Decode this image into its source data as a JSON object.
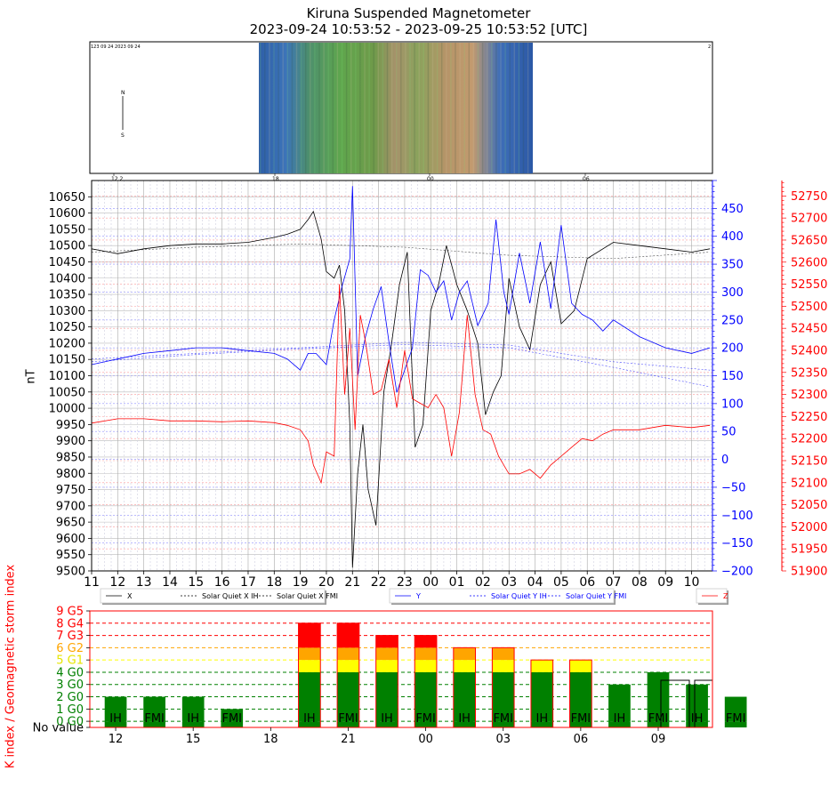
{
  "header": {
    "title": "Kiruna Suspended Magnetometer",
    "subtitle": "2023-09-24 10:53:52 - 2023-09-25 10:53:52 [UTC]"
  },
  "keogram": {
    "top_label": "123 09 24 2023 09 24",
    "right_label": "2",
    "north_label": "N",
    "south_label": "S",
    "time_ticks": [
      "12",
      "18",
      "00",
      "06"
    ],
    "time_tick_text": [
      "12 2",
      "18",
      "00",
      "06"
    ]
  },
  "magnetometer": {
    "ylabel": "nT",
    "hour_labels": [
      "11",
      "12",
      "13",
      "14",
      "15",
      "16",
      "17",
      "18",
      "19",
      "20",
      "21",
      "22",
      "23",
      "00",
      "01",
      "02",
      "03",
      "04",
      "05",
      "06",
      "07",
      "08",
      "09",
      "10"
    ],
    "left_axis": {
      "min": 9500,
      "max": 10700,
      "ticks": [
        9500,
        9550,
        9600,
        9650,
        9700,
        9750,
        9800,
        9850,
        9900,
        9950,
        10000,
        10050,
        10100,
        10150,
        10200,
        10250,
        10300,
        10350,
        10400,
        10450,
        10500,
        10550,
        10600,
        10650
      ]
    },
    "blue_axis": {
      "min": -200,
      "max": 500,
      "ticks": [
        -200,
        -150,
        -100,
        -50,
        0,
        50,
        100,
        150,
        200,
        250,
        300,
        350,
        400,
        450
      ],
      "color": "#0000ff"
    },
    "red_axis": {
      "min": 51900,
      "max": 52785,
      "ticks": [
        51900,
        51950,
        52000,
        52050,
        52100,
        52150,
        52200,
        52250,
        52300,
        52350,
        52400,
        52450,
        52500,
        52550,
        52600,
        52650,
        52700,
        52750
      ],
      "color": "#ff0000"
    },
    "legend_x": [
      "X",
      "Solar Quiet X IH",
      "Solar Quiet X FMI"
    ],
    "legend_y": [
      "Y",
      "Solar Quiet Y IH",
      "Solar Quiet Y FMI"
    ],
    "legend_z": [
      "Z"
    ]
  },
  "kindex": {
    "ylabel": "K index / Geomagnetic storm index",
    "y_labels": [
      "No value",
      "0 G0",
      "1 G0",
      "2 G0",
      "3 G0",
      "4 G0",
      "5 G1",
      "6 G2",
      "7 G3",
      "8 G4",
      "9 G5"
    ],
    "x_labels": [
      "12",
      "15",
      "18",
      "21",
      "00",
      "03",
      "06",
      "09"
    ]
  },
  "chart_data": [
    {
      "type": "line",
      "title": "Kiruna Suspended Magnetometer",
      "subtitle": "2023-09-24 10:53:52 - 2023-09-25 10:53:52 [UTC]",
      "ylabel": "nT",
      "x_unit": "hours after 2023-09-24 11:00 UTC",
      "series": [
        {
          "name": "X",
          "axis": "left",
          "color": "#000000",
          "x": [
            0,
            1,
            2,
            3,
            4,
            5,
            6,
            7,
            7.5,
            8,
            8.3,
            8.5,
            8.8,
            9,
            9.3,
            9.5,
            9.7,
            9.9,
            10,
            10.2,
            10.4,
            10.6,
            10.9,
            11.2,
            11.5,
            11.8,
            12.1,
            12.4,
            12.7,
            13,
            13.3,
            13.6,
            14,
            14.4,
            14.8,
            15.1,
            15.4,
            15.7,
            16,
            16.4,
            16.8,
            17.2,
            17.6,
            18,
            18.5,
            19,
            20,
            21,
            22,
            23,
            23.7
          ],
          "y": [
            10490,
            10475,
            10490,
            10500,
            10505,
            10505,
            10510,
            10525,
            10535,
            10550,
            10580,
            10605,
            10520,
            10420,
            10400,
            10440,
            10300,
            9950,
            9510,
            9800,
            9950,
            9750,
            9640,
            10050,
            10200,
            10380,
            10480,
            9880,
            9950,
            10300,
            10380,
            10500,
            10380,
            10300,
            10200,
            9980,
            10050,
            10100,
            10400,
            10250,
            10180,
            10380,
            10450,
            10260,
            10300,
            10460,
            10510,
            10500,
            10490,
            10480,
            10490
          ]
        },
        {
          "name": "Y",
          "axis": "blue",
          "color": "#0000ff",
          "x": [
            0,
            1,
            2,
            3,
            4,
            5,
            6,
            7,
            7.5,
            8,
            8.3,
            8.6,
            9,
            9.3,
            9.6,
            9.9,
            10,
            10.2,
            10.5,
            10.8,
            11.1,
            11.4,
            11.7,
            12,
            12.3,
            12.6,
            12.9,
            13.2,
            13.5,
            13.8,
            14.1,
            14.4,
            14.8,
            15.2,
            15.5,
            15.8,
            16,
            16.4,
            16.8,
            17.2,
            17.6,
            18,
            18.4,
            18.8,
            19.2,
            19.6,
            20,
            21,
            22,
            23,
            23.7
          ],
          "y": [
            170,
            180,
            190,
            195,
            200,
            200,
            195,
            190,
            180,
            160,
            190,
            190,
            170,
            250,
            310,
            360,
            490,
            150,
            220,
            270,
            310,
            210,
            120,
            160,
            200,
            340,
            330,
            300,
            320,
            250,
            300,
            320,
            240,
            280,
            430,
            300,
            260,
            370,
            280,
            390,
            270,
            420,
            280,
            260,
            250,
            230,
            250,
            220,
            200,
            190,
            200
          ]
        },
        {
          "name": "Z",
          "axis": "red",
          "color": "#ff0000",
          "x": [
            0,
            1,
            2,
            3,
            4,
            5,
            6,
            7,
            7.5,
            8,
            8.3,
            8.5,
            8.8,
            9,
            9.3,
            9.5,
            9.7,
            9.9,
            10.1,
            10.3,
            10.5,
            10.8,
            11.1,
            11.4,
            11.7,
            12,
            12.3,
            12.6,
            12.9,
            13.2,
            13.5,
            13.8,
            14.1,
            14.4,
            14.7,
            15,
            15.3,
            15.6,
            16,
            16.4,
            16.8,
            17.2,
            17.6,
            18,
            18.4,
            18.8,
            19.2,
            19.6,
            20,
            21,
            22,
            23,
            23.7
          ],
          "y": [
            52235,
            52245,
            52245,
            52240,
            52240,
            52238,
            52240,
            52236,
            52230,
            52220,
            52195,
            52140,
            52100,
            52170,
            52160,
            52550,
            52300,
            52450,
            52220,
            52480,
            52420,
            52300,
            52310,
            52380,
            52270,
            52400,
            52290,
            52280,
            52270,
            52300,
            52270,
            52160,
            52260,
            52480,
            52300,
            52220,
            52210,
            52160,
            52120,
            52120,
            52130,
            52110,
            52140,
            52160,
            52180,
            52200,
            52195,
            52210,
            52220,
            52220,
            52230,
            52225,
            52230
          ]
        },
        {
          "name": "Solar Quiet X IH",
          "axis": "left",
          "color": "#000000",
          "dashed": true,
          "x": [
            0,
            4,
            8,
            12,
            16,
            20,
            23.7
          ],
          "y": [
            10480,
            10495,
            10505,
            10495,
            10470,
            10460,
            10480
          ]
        },
        {
          "name": "Solar Quiet Y IH",
          "axis": "blue",
          "color": "#0000ff",
          "dashed": true,
          "x": [
            0,
            4,
            8,
            12,
            16,
            20,
            23.7
          ],
          "y": [
            180,
            190,
            200,
            210,
            205,
            175,
            160
          ]
        },
        {
          "name": "Solar Quiet Y FMI",
          "axis": "blue",
          "color": "#0000ff",
          "dashed": true,
          "x": [
            0,
            4,
            8,
            12,
            16,
            20,
            23.7
          ],
          "y": [
            175,
            188,
            198,
            206,
            200,
            165,
            130
          ]
        }
      ]
    },
    {
      "type": "bar",
      "ylabel": "K index / Geomagnetic storm index",
      "categories": [
        "IH",
        "FMI",
        "IH",
        "FMI",
        "IH",
        "FMI",
        "IH",
        "FMI",
        "IH",
        "FMI",
        "IH",
        "FMI",
        "IH",
        "FMI",
        "IH",
        "FMI"
      ],
      "x_hours": [
        12,
        13.5,
        15,
        16.5,
        19.5,
        21,
        22.5,
        24,
        25.5,
        27,
        28.5,
        30,
        31.5,
        33,
        34.5,
        36
      ],
      "values": [
        2,
        2,
        2,
        1,
        8,
        8,
        7,
        7,
        6,
        6,
        5,
        5,
        3,
        4,
        3,
        2
      ],
      "x_ticks": [
        "12",
        "15",
        "18",
        "21",
        "00",
        "03",
        "06",
        "09"
      ],
      "ylim": [
        -0.5,
        9
      ]
    }
  ]
}
